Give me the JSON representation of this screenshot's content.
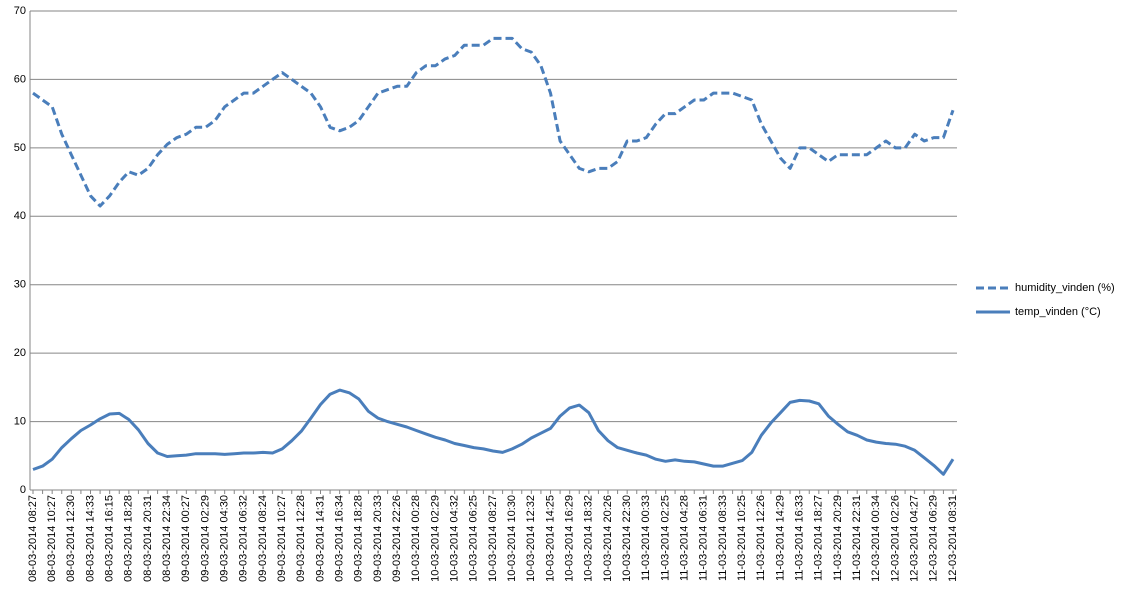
{
  "chart_data": {
    "type": "line",
    "categories": [
      "08-03-2014 08:27",
      null,
      "08-03-2014 10:27",
      null,
      "08-03-2014 12:30",
      null,
      "08-03-2014 14:33",
      null,
      "08-03-2014 16:15",
      null,
      "08-03-2014 18:28",
      null,
      "08-03-2014 20:31",
      null,
      "08-03-2014 22:34",
      null,
      "09-03-2014 00:27",
      null,
      "09-03-2014 02:29",
      null,
      "09-03-2014 04:30",
      null,
      "09-03-2014 06:32",
      null,
      "09-03-2014 08:24",
      null,
      "09-03-2014 10:27",
      null,
      "09-03-2014 12:28",
      null,
      "09-03-2014 14:31",
      null,
      "09-03-2014 16:34",
      null,
      "09-03-2014 18:28",
      null,
      "09-03-2014 20:33",
      null,
      "09-03-2014 22:26",
      null,
      "10-03-2014 00:28",
      null,
      "10-03-2014 02:29",
      null,
      "10-03-2014 04:32",
      null,
      "10-03-2014 06:25",
      null,
      "10-03-2014 08:27",
      null,
      "10-03-2014 10:30",
      null,
      "10-03-2014 12:32",
      null,
      "10-03-2014 14:25",
      null,
      "10-03-2014 16:29",
      null,
      "10-03-2014 18:32",
      null,
      "10-03-2014 20:26",
      null,
      "10-03-2014 22:30",
      null,
      "11-03-2014 00:33",
      null,
      "11-03-2014 02:25",
      null,
      "11-03-2014 04:28",
      null,
      "11-03-2014 06:31",
      null,
      "11-03-2014 08:33",
      null,
      "11-03-2014 10:25",
      null,
      "11-03-2014 12:26",
      null,
      "11-03-2014 14:29",
      null,
      "11-03-2014 16:33",
      null,
      "11-03-2014 18:27",
      null,
      "11-03-2014 20:29",
      null,
      "11-03-2014 22:31",
      null,
      "12-03-2014 00:34",
      null,
      "12-03-2014 02:26",
      null,
      "12-03-2014 04:27",
      null,
      "12-03-2014 06:29",
      null,
      "12-03-2014 08:31"
    ],
    "series": [
      {
        "name": "humidity_vinden (%)",
        "color": "#4a7ebb",
        "dashed": true,
        "values": [
          58,
          57,
          56,
          52,
          49,
          46,
          43,
          41.5,
          43,
          45,
          46.5,
          46,
          47,
          49,
          50.5,
          51.5,
          52,
          53,
          53,
          54,
          56,
          57,
          58,
          58,
          59,
          60,
          61,
          60,
          59,
          58,
          56,
          53,
          52.5,
          53,
          54,
          56,
          58,
          58.5,
          59,
          59,
          61,
          62,
          62,
          63,
          63.5,
          65,
          65,
          65,
          66,
          66,
          66,
          64.5,
          64,
          62,
          58,
          51,
          49,
          47,
          46.5,
          47,
          47,
          48,
          51,
          51,
          51.5,
          53.5,
          55,
          55,
          56,
          57,
          57,
          58,
          58,
          58,
          57.5,
          57,
          53.5,
          51,
          48.5,
          47,
          50,
          50,
          49,
          48,
          49,
          49,
          49,
          49,
          50,
          51,
          50,
          50,
          52,
          51,
          51.5,
          51.5,
          55.5
        ]
      },
      {
        "name": "temp_vinden (°C)",
        "color": "#4a7ebb",
        "dashed": false,
        "values": [
          3,
          3.5,
          4.5,
          6.2,
          7.5,
          8.7,
          9.5,
          10.4,
          11.1,
          11.2,
          10.3,
          8.8,
          6.8,
          5.4,
          4.9,
          5,
          5.1,
          5.3,
          5.3,
          5.3,
          5.2,
          5.3,
          5.4,
          5.4,
          5.5,
          5.4,
          6,
          7.2,
          8.6,
          10.5,
          12.5,
          14,
          14.6,
          14.2,
          13.3,
          11.5,
          10.5,
          10,
          9.6,
          9.2,
          8.7,
          8.2,
          7.7,
          7.3,
          6.8,
          6.5,
          6.2,
          6,
          5.7,
          5.5,
          6,
          6.7,
          7.6,
          8.3,
          9,
          10.8,
          12,
          12.4,
          11.3,
          8.7,
          7.2,
          6.2,
          5.8,
          5.4,
          5.1,
          4.5,
          4.2,
          4.4,
          4.2,
          4.1,
          3.8,
          3.5,
          3.5,
          3.9,
          4.3,
          5.5,
          8,
          9.8,
          11.3,
          12.8,
          13.1,
          13,
          12.6,
          10.8,
          9.6,
          8.5,
          8,
          7.3,
          7,
          6.8,
          6.7,
          6.4,
          5.8,
          4.7,
          3.6,
          2.3,
          4.5
        ]
      }
    ],
    "ylim": [
      0,
      70
    ],
    "yticks": [
      0,
      10,
      20,
      30,
      40,
      50,
      60,
      70
    ],
    "grid": true,
    "legend": "right"
  }
}
